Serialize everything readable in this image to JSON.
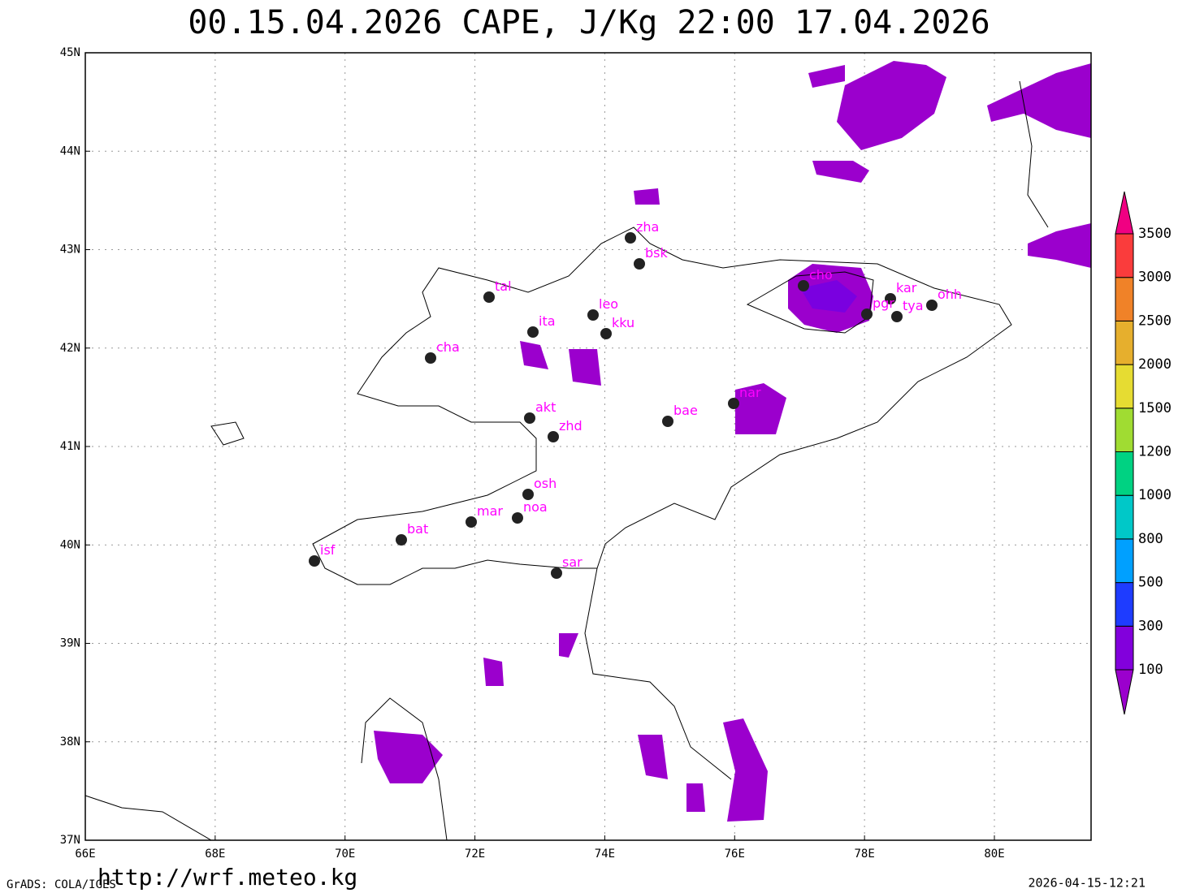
{
  "title": "00.15.04.2026 CAPE, J/Kg 22:00 17.04.2026",
  "lon_labels": [
    "66E",
    "68E",
    "70E",
    "72E",
    "74E",
    "76E",
    "78E",
    "80E"
  ],
  "lat_labels": [
    "37N",
    "38N",
    "39N",
    "40N",
    "41N",
    "42N",
    "43N",
    "44N",
    "45N"
  ],
  "stations": [
    "zha",
    "bsk",
    "tal",
    "leo",
    "ita",
    "kku",
    "cha",
    "akt",
    "zhd",
    "bae",
    "nar",
    "osh",
    "mar",
    "noa",
    "bat",
    "isf",
    "sar",
    "cho",
    "kar",
    "pgr",
    "tya",
    "ohh"
  ],
  "colorbar": {
    "labels": [
      100,
      300,
      500,
      800,
      1000,
      1200,
      1500,
      2000,
      2500,
      3000,
      3500
    ],
    "colors": [
      "#9b00cd",
      "#8200dc",
      "#1e3cff",
      "#00a0ff",
      "#00c8c8",
      "#00d282",
      "#a0dc32",
      "#e6dc32",
      "#e6af2d",
      "#f08228",
      "#fa3c3c",
      "#f00082"
    ]
  },
  "footer": {
    "left": "GrADS: COLA/IGES",
    "url": "http://wrf.meteo.kg",
    "timestamp": "2026-04-15-12:21"
  }
}
